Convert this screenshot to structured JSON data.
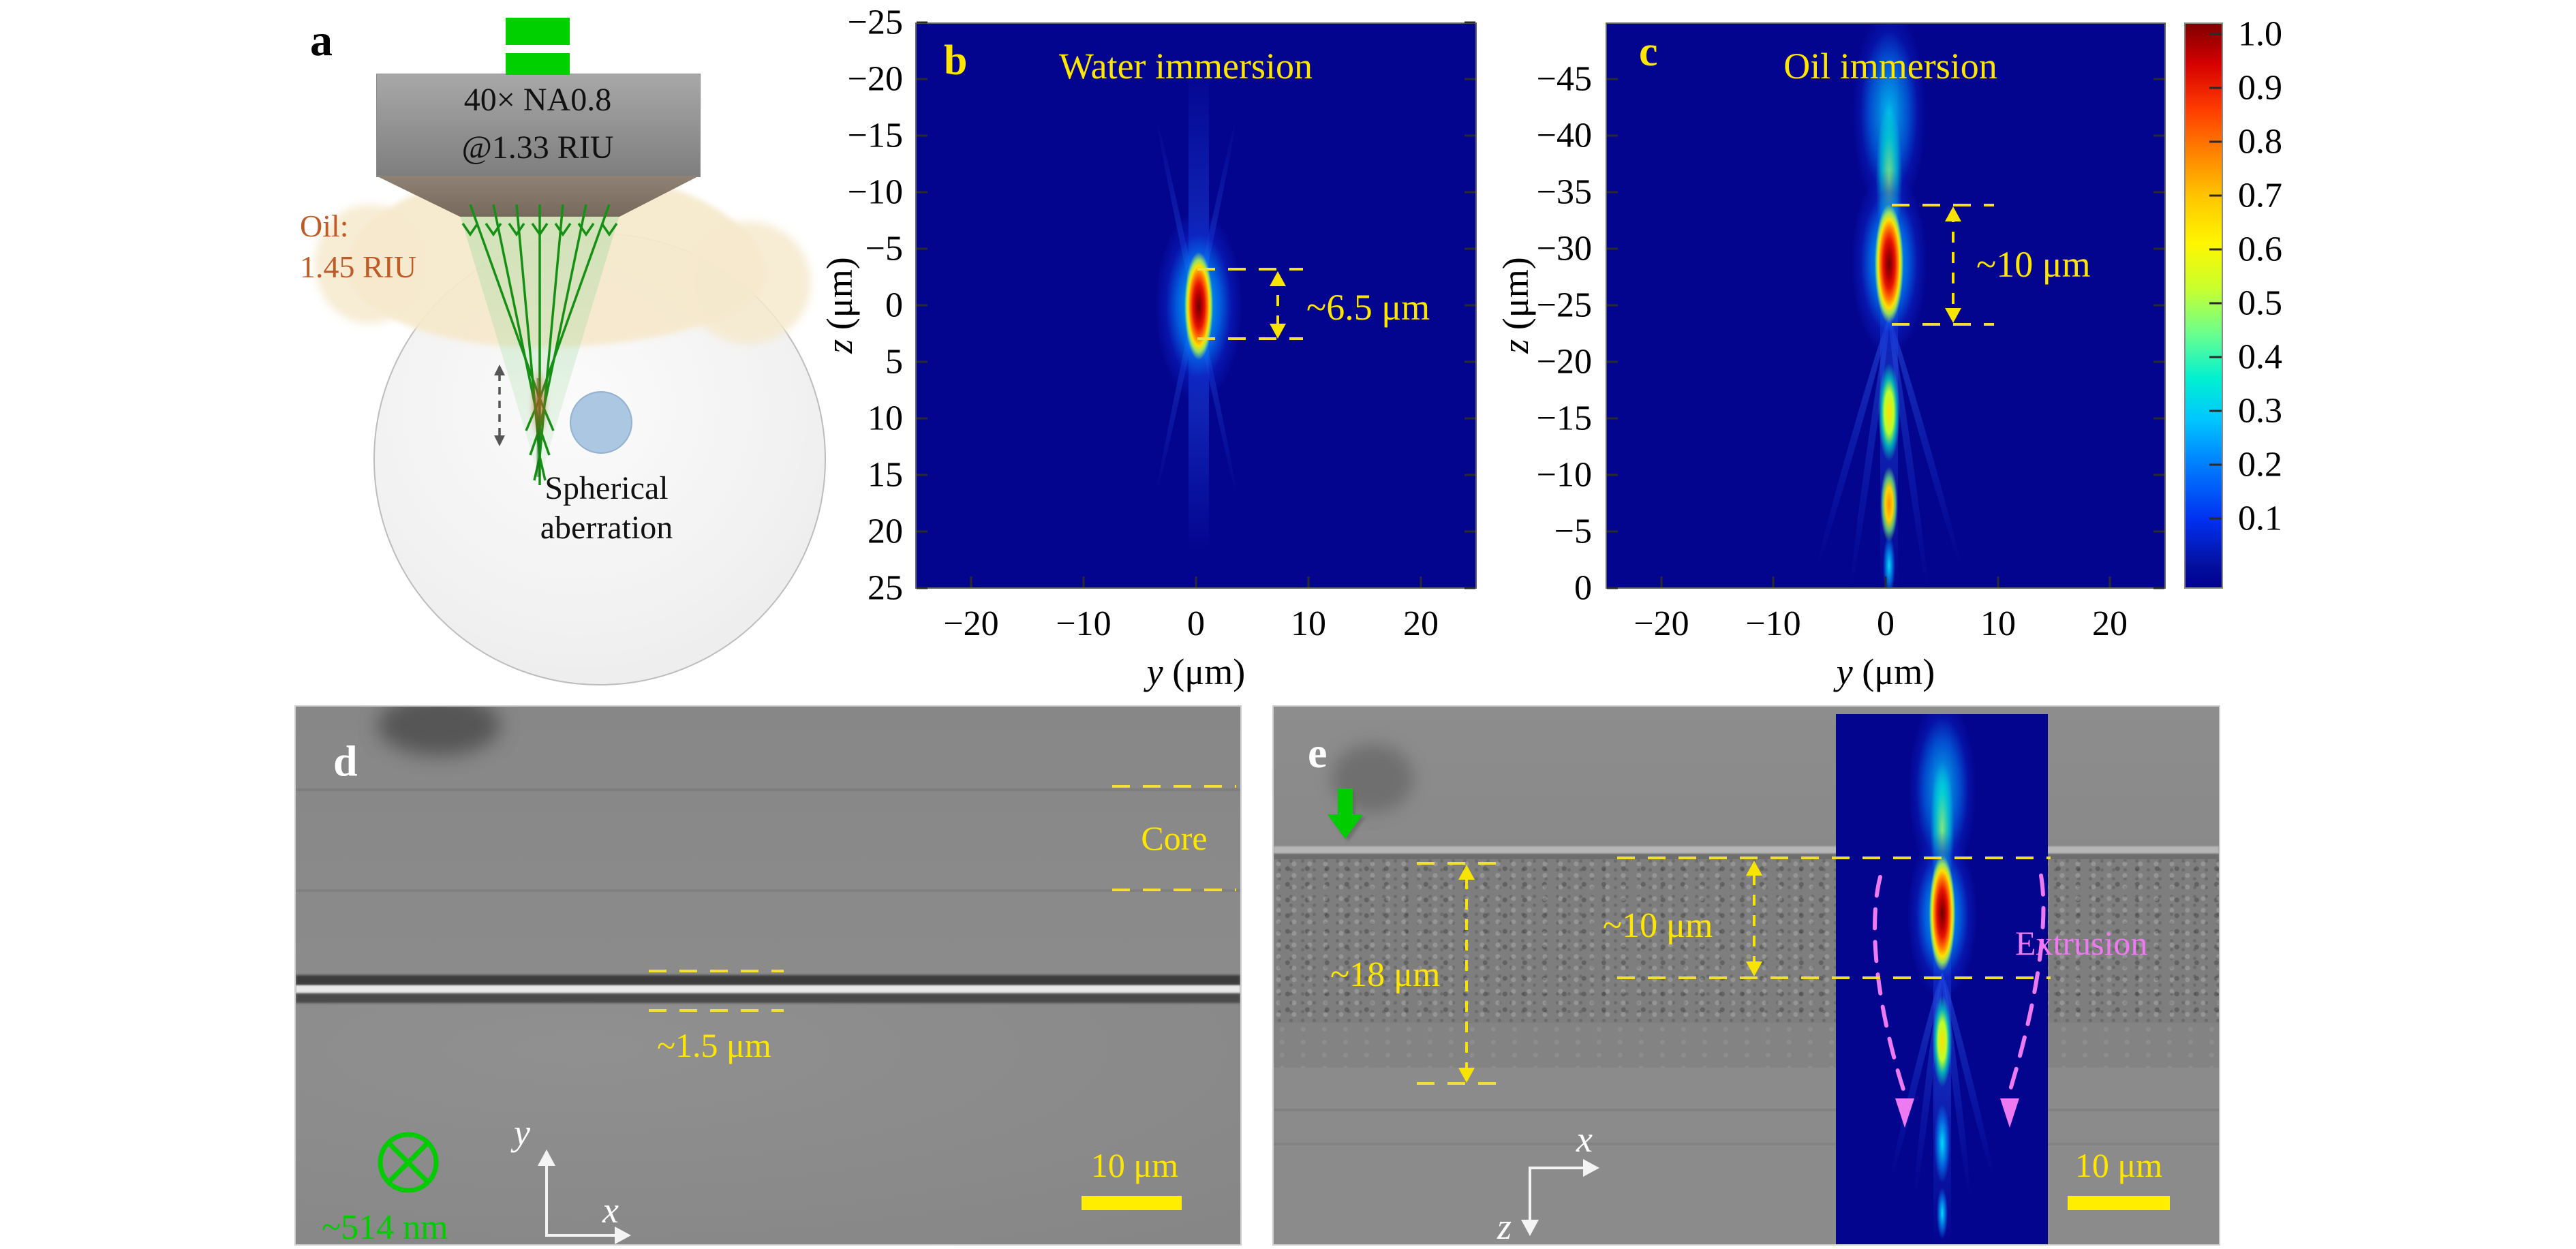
{
  "colors": {
    "annotation_yellow": "#ffe600",
    "dash_yellow": "#f2de34",
    "oil_orange": "#bf5b27",
    "laser_green": "#00cc00",
    "extrusion_magenta": "#ee7af2",
    "heatmap_bg": "#04058f"
  },
  "panel_a": {
    "label": "a",
    "objective_line1": "40× NA0.8",
    "objective_line2": "@1.33 RIU",
    "oil_line1": "Oil:",
    "oil_line2": "1.45 RIU",
    "caption_line1": "Spherical",
    "caption_line2": "aberration"
  },
  "panel_b": {
    "label": "b",
    "title": "Water immersion",
    "ylabel_var": "z",
    "ylabel_unit": " (μm)",
    "xlabel_var": "y",
    "xlabel_unit": " (μm)",
    "annotation": "~6.5 μm",
    "yticks": [
      {
        "label": "−25",
        "y": 33
      },
      {
        "label": "−20",
        "y": 116
      },
      {
        "label": "−15",
        "y": 199
      },
      {
        "label": "−10",
        "y": 282
      },
      {
        "label": "−5",
        "y": 365
      },
      {
        "label": "0",
        "y": 448
      },
      {
        "label": "5",
        "y": 531
      },
      {
        "label": "10",
        "y": 614
      },
      {
        "label": "15",
        "y": 697
      },
      {
        "label": "20",
        "y": 780
      },
      {
        "label": "25",
        "y": 863
      }
    ],
    "xticks": [
      {
        "label": "−20",
        "x": 1425
      },
      {
        "label": "−10",
        "x": 1590
      },
      {
        "label": "0",
        "x": 1755
      },
      {
        "label": "10",
        "x": 1920
      },
      {
        "label": "20",
        "x": 2085
      }
    ]
  },
  "panel_c": {
    "label": "c",
    "title": "Oil immersion",
    "ylabel_var": "z",
    "ylabel_unit": " (μm)",
    "xlabel_var": "y",
    "xlabel_unit": " (μm)",
    "annotation": "~10 μm",
    "yticks": [
      {
        "label": "−45",
        "y": 116
      },
      {
        "label": "−40",
        "y": 199
      },
      {
        "label": "−35",
        "y": 282
      },
      {
        "label": "−30",
        "y": 365
      },
      {
        "label": "−25",
        "y": 448
      },
      {
        "label": "−20",
        "y": 531
      },
      {
        "label": "−15",
        "y": 614
      },
      {
        "label": "−10",
        "y": 697
      },
      {
        "label": "−5",
        "y": 780
      },
      {
        "label": "0",
        "y": 863
      }
    ],
    "xticks": [
      {
        "label": "−20",
        "x": 2438
      },
      {
        "label": "−10",
        "x": 2602
      },
      {
        "label": "0",
        "x": 2767
      },
      {
        "label": "10",
        "x": 2932
      },
      {
        "label": "20",
        "x": 3096
      }
    ]
  },
  "colorbar": {
    "ticks": [
      {
        "label": "1.0",
        "y": 50
      },
      {
        "label": "0.9",
        "y": 129
      },
      {
        "label": "0.8",
        "y": 208
      },
      {
        "label": "0.7",
        "y": 287
      },
      {
        "label": "0.6",
        "y": 366
      },
      {
        "label": "0.5",
        "y": 445
      },
      {
        "label": "0.4",
        "y": 524
      },
      {
        "label": "0.3",
        "y": 603
      },
      {
        "label": "0.2",
        "y": 682
      },
      {
        "label": "0.1",
        "y": 761
      }
    ]
  },
  "panel_d": {
    "label": "d",
    "core": "Core",
    "line_width": "~1.5 μm",
    "wavelength": "~514 nm",
    "scalebar": "10 μm",
    "axis_x": "x",
    "axis_y": "y"
  },
  "panel_e": {
    "label": "e",
    "depth": "~18 μm",
    "focus": "~10 μm",
    "extrusion": "Extrusion",
    "scalebar": "10 μm",
    "axis_x": "x",
    "axis_z": "z"
  }
}
